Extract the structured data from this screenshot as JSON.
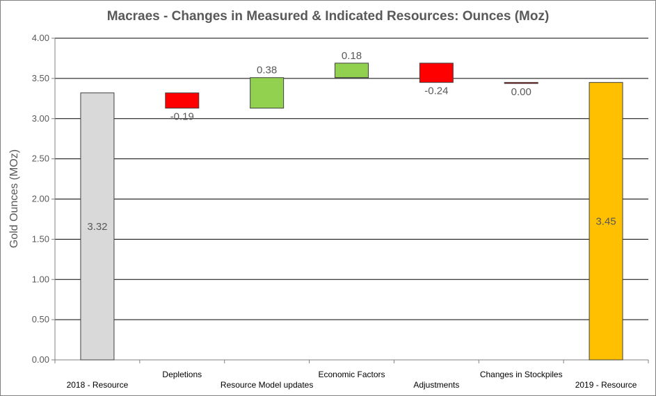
{
  "chart_data": {
    "type": "bar",
    "subtype": "waterfall",
    "title": "Macraes - Changes in Measured & Indicated Resources: Ounces (Moz)",
    "xlabel": "",
    "ylabel": "Gold Ounces (MOz)",
    "ylim": [
      0,
      4
    ],
    "ytick_step": 0.5,
    "grid": true,
    "legend": "none",
    "categories": [
      "2018 - Resource",
      "Depletions",
      "Resource Model updates",
      "Economic Factors",
      "Adjustments",
      "Changes in Stockpiles",
      "2019 - Resource"
    ],
    "values": [
      3.32,
      -0.19,
      0.38,
      0.18,
      -0.24,
      0.0,
      3.45
    ],
    "value_labels": [
      "3.32",
      "-0.19",
      "0.38",
      "0.18",
      "-0.24",
      "0.00",
      "3.45"
    ],
    "kinds": [
      "total",
      "delta",
      "delta",
      "delta",
      "delta",
      "delta",
      "total"
    ],
    "colors": {
      "start_total": "#d9d9d9",
      "end_total": "#ffc000",
      "increase": "#92d050",
      "decrease": "#ff0000",
      "zero": "#c00000",
      "gridline": "#000000",
      "text": "#595959"
    }
  }
}
